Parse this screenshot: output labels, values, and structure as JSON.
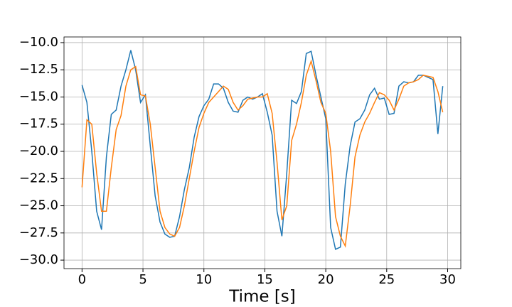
{
  "chart_data": {
    "type": "line",
    "xlabel": "Time [s]",
    "x": [
      0,
      0.4,
      0.8,
      1.2,
      1.6,
      2,
      2.4,
      2.8,
      3.2,
      3.6,
      4,
      4.4,
      4.8,
      5.2,
      5.6,
      6,
      6.4,
      6.8,
      7.2,
      7.6,
      8,
      8.4,
      8.8,
      9.2,
      9.6,
      10,
      10.4,
      10.8,
      11.2,
      11.6,
      12,
      12.4,
      12.8,
      13.2,
      13.6,
      14,
      14.4,
      14.8,
      15.2,
      15.6,
      16,
      16.4,
      16.8,
      17.2,
      17.6,
      18,
      18.4,
      18.8,
      19.2,
      19.6,
      20,
      20.4,
      20.8,
      21.2,
      21.6,
      22,
      22.4,
      22.8,
      23.2,
      23.6,
      24,
      24.4,
      24.8,
      25.2,
      25.6,
      26,
      26.4,
      26.8,
      27.2,
      27.6,
      28,
      28.4,
      28.8,
      29.2,
      29.6
    ],
    "series": [
      {
        "color": "#1f77b4",
        "values": [
          -13.9,
          -15.5,
          -20,
          -25.5,
          -27.2,
          -20.5,
          -16.6,
          -16.2,
          -14.0,
          -12.5,
          -10.7,
          -12.5,
          -15.5,
          -14.8,
          -19.5,
          -24.1,
          -26.5,
          -27.6,
          -27.9,
          -27.8,
          -26,
          -23.5,
          -21.5,
          -18.7,
          -16.8,
          -15.8,
          -15.2,
          -13.8,
          -13.8,
          -14.2,
          -15.5,
          -16.3,
          -16.4,
          -15.3,
          -15.0,
          -15.2,
          -15.0,
          -14.7,
          -16.4,
          -18.5,
          -25.5,
          -27.8,
          -22,
          -15.3,
          -15.6,
          -14.5,
          -11,
          -10.8,
          -13,
          -15,
          -17,
          -27,
          -29,
          -28.8,
          -23,
          -19.5,
          -17.3,
          -17,
          -16.2,
          -14.8,
          -14.2,
          -15.2,
          -15.1,
          -16.6,
          -16.5,
          -14.0,
          -13.6,
          -13.7,
          -13.6,
          -13.0,
          -13.0,
          -13.2,
          -13.4,
          -18.4,
          -14.0
        ]
      },
      {
        "color": "#ff7f0e",
        "values": [
          -23.3,
          -17.1,
          -17.5,
          -22,
          -25.5,
          -25.5,
          -21.5,
          -18,
          -16.7,
          -14,
          -12.5,
          -12.2,
          -14.8,
          -14.9,
          -17.5,
          -21.5,
          -25.5,
          -27,
          -27.6,
          -27.8,
          -27,
          -25,
          -22.5,
          -20,
          -17.8,
          -16.5,
          -15.5,
          -15,
          -14.5,
          -14,
          -14.3,
          -15.5,
          -16.2,
          -15.8,
          -15.2,
          -15.1,
          -15.0,
          -15.0,
          -14.7,
          -16.5,
          -21,
          -26.3,
          -25,
          -19,
          -17.5,
          -15.5,
          -13,
          -11.7,
          -13.5,
          -15.5,
          -16.5,
          -20,
          -26,
          -27.8,
          -28.7,
          -25,
          -20.5,
          -18.5,
          -17.3,
          -16.5,
          -15.5,
          -14.6,
          -14.8,
          -15.3,
          -16.2,
          -15.2,
          -14,
          -13.7,
          -13.6,
          -13.4,
          -13,
          -13.1,
          -13.2,
          -14.5,
          -16.4
        ]
      }
    ],
    "xlim": [
      -1.48,
      31.08
    ],
    "xticks": [
      0,
      5,
      10,
      15,
      20,
      25,
      30
    ],
    "ylim": [
      -30.78,
      -9.48
    ],
    "yticks": [
      {
        "value": -30,
        "label": "−30.0"
      },
      {
        "value": -27.5,
        "label": "−27.5"
      },
      {
        "value": -25,
        "label": "−25.0"
      },
      {
        "value": -22.5,
        "label": "−22.5"
      },
      {
        "value": -20,
        "label": "−20.0"
      },
      {
        "value": -17.5,
        "label": "−17.5"
      },
      {
        "value": -15,
        "label": "−15.0"
      },
      {
        "value": -12.5,
        "label": "−12.5"
      },
      {
        "value": -10,
        "label": "−10.0"
      }
    ],
    "grid": true
  }
}
